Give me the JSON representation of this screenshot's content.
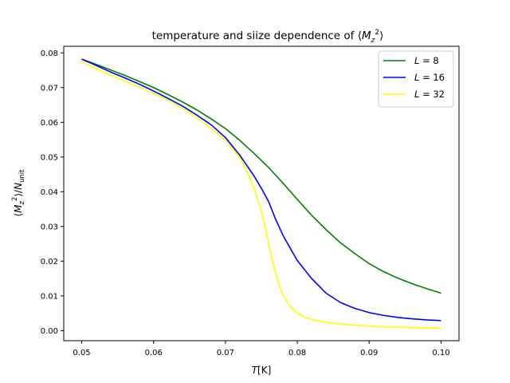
{
  "chart_data": {
    "type": "line",
    "title": "temperature and siize dependence of ⟨M_z²⟩",
    "xlabel": "T[K]",
    "ylabel": "⟨M_z²⟩/N_unit",
    "xlim": [
      0.0475,
      0.1025
    ],
    "ylim": [
      -0.0029,
      0.0819
    ],
    "xticks": [
      0.05,
      0.06,
      0.07,
      0.08,
      0.09,
      0.1
    ],
    "xtick_labels": [
      "0.05",
      "0.06",
      "0.07",
      "0.08",
      "0.09",
      "0.10"
    ],
    "yticks": [
      0.0,
      0.01,
      0.02,
      0.03,
      0.04,
      0.05,
      0.06,
      0.07,
      0.08
    ],
    "ytick_labels": [
      "0.00",
      "0.01",
      "0.02",
      "0.03",
      "0.04",
      "0.05",
      "0.06",
      "0.07",
      "0.08"
    ],
    "grid": false,
    "legend_position": "top-right",
    "series": [
      {
        "name": "L = 8",
        "color": "#008000",
        "x": [
          0.05,
          0.052,
          0.054,
          0.056,
          0.058,
          0.06,
          0.062,
          0.064,
          0.066,
          0.068,
          0.07,
          0.072,
          0.074,
          0.076,
          0.078,
          0.08,
          0.082,
          0.084,
          0.086,
          0.088,
          0.09,
          0.092,
          0.094,
          0.096,
          0.098,
          0.1
        ],
        "y": [
          0.0782,
          0.0767,
          0.0751,
          0.0735,
          0.0718,
          0.07,
          0.068,
          0.0659,
          0.0636,
          0.061,
          0.0582,
          0.0548,
          0.051,
          0.047,
          0.0425,
          0.0378,
          0.0332,
          0.0291,
          0.0253,
          0.0222,
          0.0193,
          0.017,
          0.0151,
          0.0135,
          0.0121,
          0.0108
        ]
      },
      {
        "name": "L = 16",
        "color": "#0000ff",
        "x": [
          0.05,
          0.052,
          0.054,
          0.056,
          0.058,
          0.06,
          0.062,
          0.064,
          0.066,
          0.068,
          0.07,
          0.072,
          0.073,
          0.074,
          0.075,
          0.076,
          0.077,
          0.078,
          0.079,
          0.08,
          0.082,
          0.084,
          0.086,
          0.088,
          0.09,
          0.092,
          0.094,
          0.096,
          0.098,
          0.1
        ],
        "y": [
          0.0782,
          0.0764,
          0.0745,
          0.0728,
          0.071,
          0.069,
          0.0669,
          0.0647,
          0.0621,
          0.0593,
          0.0556,
          0.0505,
          0.0475,
          0.0445,
          0.041,
          0.0372,
          0.032,
          0.0275,
          0.0238,
          0.0202,
          0.015,
          0.0108,
          0.0081,
          0.0064,
          0.0052,
          0.0044,
          0.0038,
          0.0034,
          0.0031,
          0.0029
        ]
      },
      {
        "name": "L = 32",
        "color": "#ffff00",
        "x": [
          0.05,
          0.052,
          0.054,
          0.056,
          0.058,
          0.06,
          0.062,
          0.064,
          0.066,
          0.068,
          0.07,
          0.072,
          0.073,
          0.074,
          0.075,
          0.0755,
          0.076,
          0.0765,
          0.077,
          0.0775,
          0.078,
          0.079,
          0.08,
          0.081,
          0.082,
          0.084,
          0.086,
          0.088,
          0.09,
          0.092,
          0.094,
          0.096,
          0.098,
          0.1
        ],
        "y": [
          0.0775,
          0.0755,
          0.0736,
          0.0719,
          0.0701,
          0.0683,
          0.0664,
          0.0641,
          0.0613,
          0.0583,
          0.0548,
          0.0498,
          0.0458,
          0.041,
          0.0345,
          0.03,
          0.0253,
          0.0205,
          0.0165,
          0.013,
          0.0102,
          0.007,
          0.005,
          0.0039,
          0.0032,
          0.0024,
          0.0019,
          0.0016,
          0.0013,
          0.0011,
          0.001,
          0.0009,
          0.0008,
          0.0007
        ]
      }
    ]
  }
}
